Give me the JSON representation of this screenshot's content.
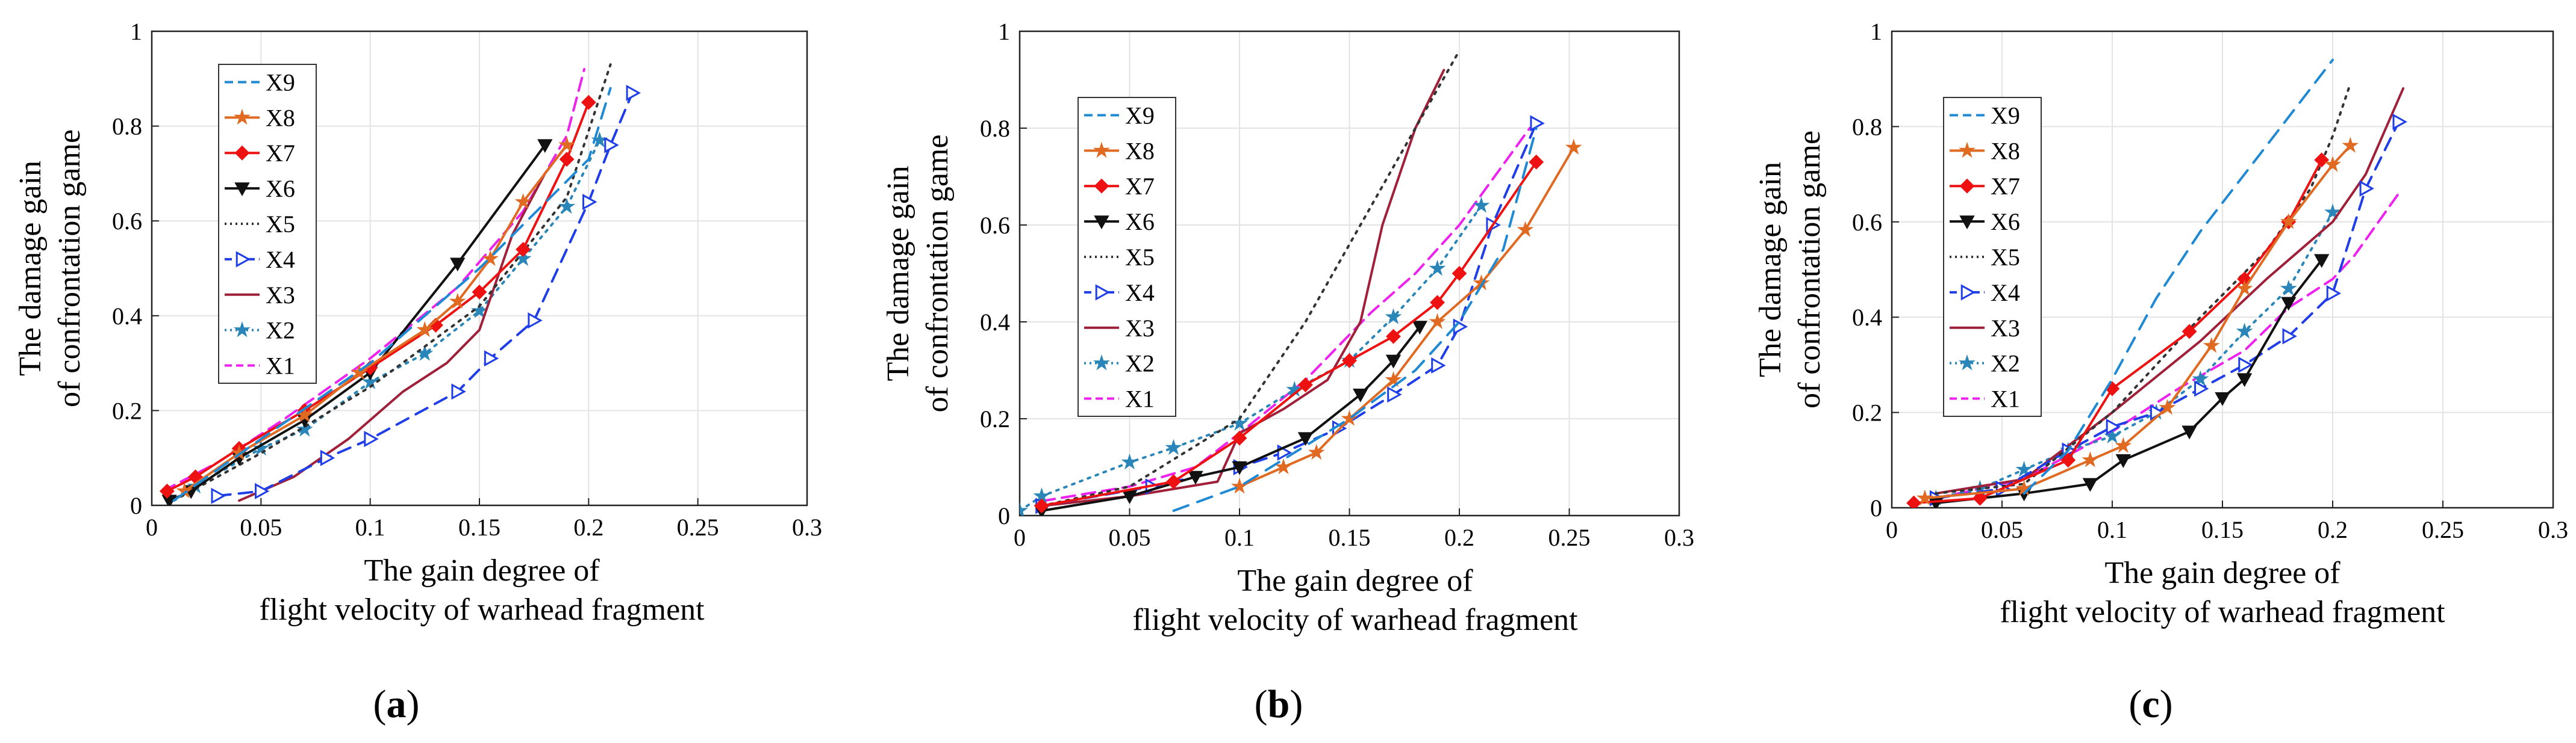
{
  "series_styles": {
    "X9": {
      "color": "#1f8ad3",
      "dash": "26,16",
      "marker": "none"
    },
    "X8": {
      "color": "#e06a22",
      "dash": "",
      "marker": "star"
    },
    "X7": {
      "color": "#ee1111",
      "dash": "",
      "marker": "diamond"
    },
    "X6": {
      "color": "#111111",
      "dash": "",
      "marker": "tri-down"
    },
    "X5": {
      "color": "#333333",
      "dash": "4,10",
      "marker": "none"
    },
    "X4": {
      "color": "#1f3ee8",
      "dash": "22,14",
      "marker": "tri-right"
    },
    "X3": {
      "color": "#a0203a",
      "dash": "",
      "marker": "none"
    },
    "X2": {
      "color": "#2a86b8",
      "dash": "4,10",
      "marker": "star"
    },
    "X1": {
      "color": "#ee22ee",
      "dash": "22,12",
      "marker": "none"
    }
  },
  "chart_data": [
    {
      "type": "line",
      "panel_label": "a",
      "xlabel": "The gain degree of",
      "xlabel2": "flight velocity of warhead fragment",
      "ylabel": "The damage gain",
      "ylabel2": "of confrontation game",
      "xlim": [
        0,
        0.3
      ],
      "ylim": [
        0,
        1
      ],
      "x_ticks": [
        "0",
        "0.05",
        "0.1",
        "0.15",
        "0.2",
        "0.25",
        "0.3"
      ],
      "y_ticks": [
        "0",
        "0.2",
        "0.4",
        "0.6",
        "0.8",
        "1"
      ],
      "grid": true,
      "legend_position": "top-left",
      "legend": [
        "X9",
        "X8",
        "X7",
        "X6",
        "X5",
        "X4",
        "X3",
        "X2",
        "X1"
      ],
      "series": [
        {
          "name": "X9",
          "x": [
            0.01,
            0.05,
            0.1,
            0.15,
            0.2,
            0.21
          ],
          "y": [
            0.01,
            0.14,
            0.3,
            0.5,
            0.73,
            0.88
          ]
        },
        {
          "name": "X8",
          "x": [
            0.015,
            0.04,
            0.07,
            0.095,
            0.125,
            0.14,
            0.155,
            0.17,
            0.19
          ],
          "y": [
            0.03,
            0.11,
            0.19,
            0.28,
            0.37,
            0.43,
            0.52,
            0.64,
            0.76
          ]
        },
        {
          "name": "X7",
          "x": [
            0.007,
            0.02,
            0.04,
            0.07,
            0.1,
            0.13,
            0.15,
            0.17,
            0.19,
            0.2
          ],
          "y": [
            0.03,
            0.06,
            0.12,
            0.2,
            0.29,
            0.38,
            0.45,
            0.54,
            0.73,
            0.85
          ]
        },
        {
          "name": "X6",
          "x": [
            0.008,
            0.018,
            0.04,
            0.07,
            0.1,
            0.14,
            0.18
          ],
          "y": [
            0.01,
            0.03,
            0.1,
            0.18,
            0.28,
            0.51,
            0.76
          ]
        },
        {
          "name": "X5",
          "x": [
            0.01,
            0.05,
            0.1,
            0.15,
            0.19,
            0.21
          ],
          "y": [
            0.01,
            0.11,
            0.25,
            0.42,
            0.65,
            0.93
          ]
        },
        {
          "name": "X4",
          "x": [
            0.03,
            0.05,
            0.08,
            0.1,
            0.14,
            0.155,
            0.175,
            0.2,
            0.21,
            0.22
          ],
          "y": [
            0.02,
            0.03,
            0.1,
            0.14,
            0.24,
            0.31,
            0.39,
            0.64,
            0.76,
            0.87
          ]
        },
        {
          "name": "X3",
          "x": [
            0.04,
            0.065,
            0.09,
            0.115,
            0.135,
            0.15,
            0.165,
            0.18,
            0.19
          ],
          "y": [
            0.01,
            0.06,
            0.14,
            0.24,
            0.3,
            0.37,
            0.57,
            0.7,
            0.76
          ]
        },
        {
          "name": "X2",
          "x": [
            0.02,
            0.05,
            0.07,
            0.1,
            0.125,
            0.15,
            0.17,
            0.19,
            0.205
          ],
          "y": [
            0.04,
            0.12,
            0.16,
            0.26,
            0.32,
            0.41,
            0.52,
            0.63,
            0.77
          ]
        },
        {
          "name": "X1",
          "x": [
            0.005,
            0.03,
            0.06,
            0.1,
            0.14,
            0.17,
            0.19,
            0.198
          ],
          "y": [
            0.03,
            0.09,
            0.18,
            0.31,
            0.46,
            0.62,
            0.78,
            0.92
          ]
        }
      ]
    },
    {
      "type": "line",
      "panel_label": "b",
      "xlabel": "The gain degree of",
      "xlabel2": "flight velocity of warhead fragment",
      "ylabel": "The damage gain",
      "ylabel2": "of confrontation game",
      "xlim": [
        0,
        0.3
      ],
      "ylim": [
        0,
        1
      ],
      "x_ticks": [
        "0",
        "0.05",
        "0.1",
        "0.15",
        "0.2",
        "0.25",
        "0.3"
      ],
      "y_ticks": [
        "0",
        "0.2",
        "0.4",
        "0.6",
        "0.8",
        "1"
      ],
      "grid": true,
      "legend_position": "top-left",
      "legend": [
        "X9",
        "X8",
        "X7",
        "X6",
        "X5",
        "X4",
        "X3",
        "X2",
        "X1"
      ],
      "series": [
        {
          "name": "X9",
          "x": [
            0.07,
            0.1,
            0.15,
            0.18,
            0.2,
            0.22,
            0.235
          ],
          "y": [
            0.01,
            0.06,
            0.2,
            0.3,
            0.4,
            0.55,
            0.8
          ]
        },
        {
          "name": "X8",
          "x": [
            0.1,
            0.12,
            0.135,
            0.15,
            0.17,
            0.19,
            0.21,
            0.23,
            0.252
          ],
          "y": [
            0.06,
            0.1,
            0.13,
            0.2,
            0.28,
            0.4,
            0.48,
            0.59,
            0.76
          ]
        },
        {
          "name": "X7",
          "x": [
            0.01,
            0.07,
            0.1,
            0.13,
            0.15,
            0.17,
            0.19,
            0.2,
            0.235
          ],
          "y": [
            0.02,
            0.07,
            0.16,
            0.27,
            0.32,
            0.37,
            0.44,
            0.5,
            0.73
          ]
        },
        {
          "name": "X6",
          "x": [
            0.01,
            0.05,
            0.08,
            0.1,
            0.13,
            0.155,
            0.17,
            0.182
          ],
          "y": [
            0.01,
            0.04,
            0.08,
            0.1,
            0.16,
            0.25,
            0.32,
            0.39
          ]
        },
        {
          "name": "X5",
          "x": [
            0.01,
            0.05,
            0.1,
            0.13,
            0.16,
            0.18,
            0.2
          ],
          "y": [
            0.02,
            0.06,
            0.2,
            0.4,
            0.64,
            0.8,
            0.96
          ]
        },
        {
          "name": "X4",
          "x": [
            0.01,
            0.06,
            0.1,
            0.12,
            0.145,
            0.17,
            0.19,
            0.2,
            0.215,
            0.235
          ],
          "y": [
            0.02,
            0.06,
            0.1,
            0.13,
            0.18,
            0.25,
            0.31,
            0.39,
            0.6,
            0.81
          ]
        },
        {
          "name": "X3",
          "x": [
            0.01,
            0.05,
            0.09,
            0.1,
            0.12,
            0.14,
            0.155,
            0.165,
            0.18,
            0.193
          ],
          "y": [
            0.02,
            0.04,
            0.07,
            0.17,
            0.22,
            0.28,
            0.4,
            0.6,
            0.8,
            0.92
          ]
        },
        {
          "name": "X2",
          "x": [
            0.0,
            0.01,
            0.05,
            0.07,
            0.1,
            0.125,
            0.15,
            0.17,
            0.19,
            0.21
          ],
          "y": [
            0.01,
            0.04,
            0.11,
            0.14,
            0.19,
            0.26,
            0.32,
            0.41,
            0.51,
            0.64
          ]
        },
        {
          "name": "X1",
          "x": [
            0.01,
            0.05,
            0.08,
            0.1,
            0.13,
            0.16,
            0.18,
            0.2,
            0.232
          ],
          "y": [
            0.03,
            0.06,
            0.1,
            0.17,
            0.28,
            0.42,
            0.5,
            0.6,
            0.8
          ]
        }
      ]
    },
    {
      "type": "line",
      "panel_label": "c",
      "xlabel": "The gain degree of",
      "xlabel2": "flight velocity of warhead fragment",
      "ylabel": "The damage gain",
      "ylabel2": "of confrontation game",
      "xlim": [
        0,
        0.3
      ],
      "ylim": [
        0,
        1
      ],
      "x_ticks": [
        "0",
        "0.05",
        "0.1",
        "0.15",
        "0.2",
        "0.25",
        "0.3"
      ],
      "y_ticks": [
        "0",
        "0.2",
        "0.4",
        "0.6",
        "0.8",
        "1"
      ],
      "grid": true,
      "legend_position": "top-left",
      "legend": [
        "X9",
        "X8",
        "X7",
        "X6",
        "X5",
        "X4",
        "X3",
        "X2",
        "X1"
      ],
      "series": [
        {
          "name": "X9",
          "x": [
            0.06,
            0.08,
            0.1,
            0.12,
            0.14,
            0.16,
            0.18,
            0.2
          ],
          "y": [
            0.03,
            0.12,
            0.27,
            0.44,
            0.58,
            0.7,
            0.82,
            0.94
          ]
        },
        {
          "name": "X8",
          "x": [
            0.015,
            0.06,
            0.09,
            0.105,
            0.125,
            0.145,
            0.16,
            0.18,
            0.2,
            0.208
          ],
          "y": [
            0.02,
            0.04,
            0.1,
            0.13,
            0.21,
            0.34,
            0.46,
            0.6,
            0.72,
            0.76
          ]
        },
        {
          "name": "X7",
          "x": [
            0.01,
            0.04,
            0.08,
            0.1,
            0.135,
            0.16,
            0.18,
            0.195
          ],
          "y": [
            0.01,
            0.02,
            0.1,
            0.25,
            0.37,
            0.48,
            0.6,
            0.73
          ]
        },
        {
          "name": "X6",
          "x": [
            0.02,
            0.06,
            0.09,
            0.105,
            0.135,
            0.15,
            0.16,
            0.18,
            0.195
          ],
          "y": [
            0.01,
            0.03,
            0.05,
            0.1,
            0.16,
            0.23,
            0.27,
            0.43,
            0.52
          ]
        },
        {
          "name": "X5",
          "x": [
            0.02,
            0.06,
            0.1,
            0.14,
            0.17,
            0.19,
            0.2,
            0.208
          ],
          "y": [
            0.03,
            0.05,
            0.2,
            0.4,
            0.54,
            0.67,
            0.78,
            0.89
          ]
        },
        {
          "name": "X4",
          "x": [
            0.02,
            0.05,
            0.08,
            0.1,
            0.12,
            0.14,
            0.16,
            0.18,
            0.2,
            0.215,
            0.23
          ],
          "y": [
            0.02,
            0.04,
            0.12,
            0.17,
            0.2,
            0.25,
            0.3,
            0.36,
            0.45,
            0.67,
            0.81
          ]
        },
        {
          "name": "X3",
          "x": [
            0.02,
            0.06,
            0.1,
            0.14,
            0.17,
            0.2,
            0.215,
            0.232
          ],
          "y": [
            0.03,
            0.06,
            0.2,
            0.35,
            0.48,
            0.6,
            0.7,
            0.88
          ]
        },
        {
          "name": "X2",
          "x": [
            0.02,
            0.04,
            0.06,
            0.08,
            0.1,
            0.12,
            0.14,
            0.16,
            0.18,
            0.2
          ],
          "y": [
            0.02,
            0.04,
            0.08,
            0.12,
            0.15,
            0.2,
            0.27,
            0.37,
            0.46,
            0.62
          ]
        },
        {
          "name": "X1",
          "x": [
            0.02,
            0.06,
            0.1,
            0.13,
            0.16,
            0.18,
            0.2,
            0.21,
            0.23
          ],
          "y": [
            0.02,
            0.06,
            0.16,
            0.25,
            0.33,
            0.42,
            0.48,
            0.53,
            0.66
          ]
        }
      ]
    }
  ]
}
